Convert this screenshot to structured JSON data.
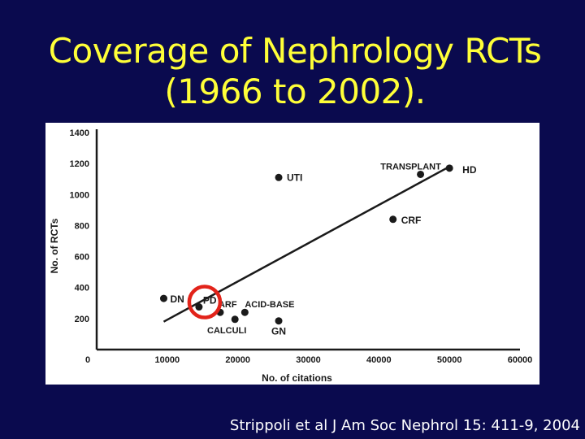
{
  "slide": {
    "title_lines": [
      "Coverage of Nephrology RCTs",
      "(1966 to 2002)."
    ],
    "citation": "Strippoli et al J Am Soc Nephrol 15: 411-9, 2004",
    "colors": {
      "background": "#0a0a4e",
      "title": "#ffff38",
      "citation": "#ffffff",
      "highlight_circle": "#e2231a"
    }
  },
  "chart_data": {
    "type": "scatter",
    "title": "",
    "xlabel": "No. of citations",
    "ylabel": "No. of RCTs",
    "xlim": [
      0,
      60000
    ],
    "ylim": [
      0,
      1400
    ],
    "x_ticks": [
      "0",
      "10000",
      "20000",
      "30000",
      "40000",
      "50000",
      "60000"
    ],
    "y_ticks": [
      "1400",
      "1200",
      "1000",
      "800",
      "600",
      "400",
      "200"
    ],
    "grid": false,
    "points": [
      {
        "label": "DN",
        "x": 9500,
        "y": 330
      },
      {
        "label": "PD",
        "x": 14500,
        "y": 275
      },
      {
        "label": "ARF",
        "x": 17500,
        "y": 240
      },
      {
        "label": "CALCULI",
        "x": 19600,
        "y": 195
      },
      {
        "label": "ACID-BASE",
        "x": 21000,
        "y": 240
      },
      {
        "label": "GN",
        "x": 25800,
        "y": 185
      },
      {
        "label": "UTI",
        "x": 25800,
        "y": 1110
      },
      {
        "label": "CRF",
        "x": 42000,
        "y": 840
      },
      {
        "label": "TRANSPLANT",
        "x": 45900,
        "y": 1130
      },
      {
        "label": "HD",
        "x": 50000,
        "y": 1170
      }
    ],
    "trend_line": {
      "x": [
        9500,
        50000
      ],
      "y": [
        180,
        1180
      ]
    },
    "highlight": {
      "label": "PD"
    }
  }
}
